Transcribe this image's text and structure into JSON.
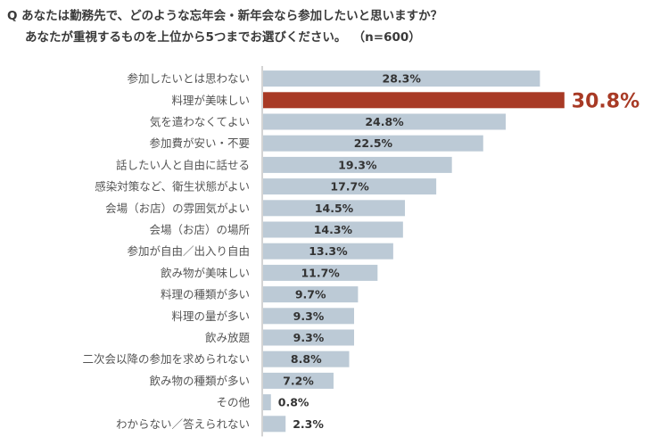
{
  "question": {
    "line1": "Q あなたは勤務先で、どのような忘年会・新年会なら参加したいと思いますか？",
    "line2": "あなたが重視するものを上位から5つまでお選びください。",
    "sample": "（n=600）"
  },
  "chart_data": {
    "type": "bar",
    "orientation": "horizontal",
    "title": "Q あなたは勤務先で、どのような忘年会・新年会なら参加したいと思いますか？ あなたが重視するものを上位から5つまでお選びください。（n=600）",
    "xlabel": "",
    "ylabel": "",
    "unit": "%",
    "xlim": [
      0,
      35
    ],
    "grid": false,
    "categories": [
      "参加したいとは思わない",
      "料理が美味しい",
      "気を遣わなくてよい",
      "参加費が安い・不要",
      "話したい人と自由に話せる",
      "感染対策など、衛生状態がよい",
      "会場（お店）の雰囲気がよい",
      "会場（お店）の場所",
      "参加が自由／出入り自由",
      "飲み物が美味しい",
      "料理の種類が多い",
      "料理の量が多い",
      "飲み放題",
      "二次会以降の参加を求められない",
      "飲み物の種類が多い",
      "その他",
      "わからない／答えられない"
    ],
    "values": [
      28.3,
      30.8,
      24.8,
      22.5,
      19.3,
      17.7,
      14.5,
      14.3,
      13.3,
      11.7,
      9.7,
      9.3,
      9.3,
      8.8,
      7.2,
      0.8,
      2.3
    ],
    "labels": [
      "28.3%",
      "30.8%",
      "24.8%",
      "22.5%",
      "19.3%",
      "17.7%",
      "14.5%",
      "14.3%",
      "13.3%",
      "11.7%",
      "9.7%",
      "9.3%",
      "9.3%",
      "8.8%",
      "7.2%",
      "0.8%",
      "2.3%"
    ],
    "highlight_index": 1,
    "colors": {
      "bar": "#bccad6",
      "highlight": "#a83a25",
      "axis": "#a8a8a8",
      "label_text": "#333333",
      "category_text": "#555555"
    }
  }
}
